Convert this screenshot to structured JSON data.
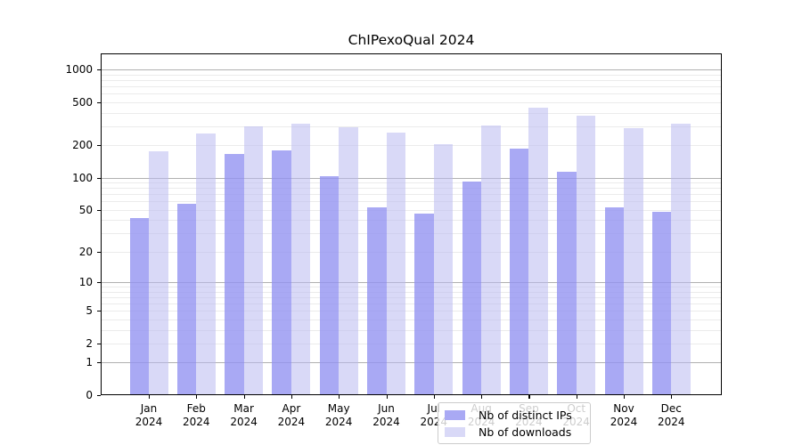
{
  "title": "ChIPexoQual 2024",
  "chart_data": {
    "type": "bar",
    "title": "ChIPexoQual 2024",
    "yscale": "log1p",
    "ylim": [
      0,
      1000
    ],
    "yticks": [
      0,
      1,
      2,
      5,
      10,
      20,
      50,
      100,
      200,
      500,
      1000
    ],
    "grid": true,
    "legend_position": "lower center",
    "categories": [
      "Jan",
      "Feb",
      "Mar",
      "Apr",
      "May",
      "Jun",
      "Jul",
      "Aug",
      "Sep",
      "Oct",
      "Nov",
      "Dec"
    ],
    "year": "2024",
    "series": [
      {
        "name": "Nb of distinct IPs",
        "key": "ips",
        "color": "#a9a9f4",
        "color_rgba": "rgba(148,148,241,0.8)",
        "values": [
          42,
          57,
          165,
          178,
          104,
          53,
          46,
          93,
          188,
          113,
          53,
          48
        ]
      },
      {
        "name": "Nb of downloads",
        "key": "downloads",
        "color": "#d9d9f7",
        "color_rgba": "rgba(186,186,240,0.55)",
        "values": [
          175,
          255,
          300,
          320,
          295,
          260,
          205,
          305,
          445,
          375,
          290,
          320
        ]
      }
    ],
    "colors": {
      "axis": "#000000",
      "grid_minor": "#ebebeb",
      "grid_major": "#b0b0b0",
      "background": "#ffffff"
    }
  }
}
